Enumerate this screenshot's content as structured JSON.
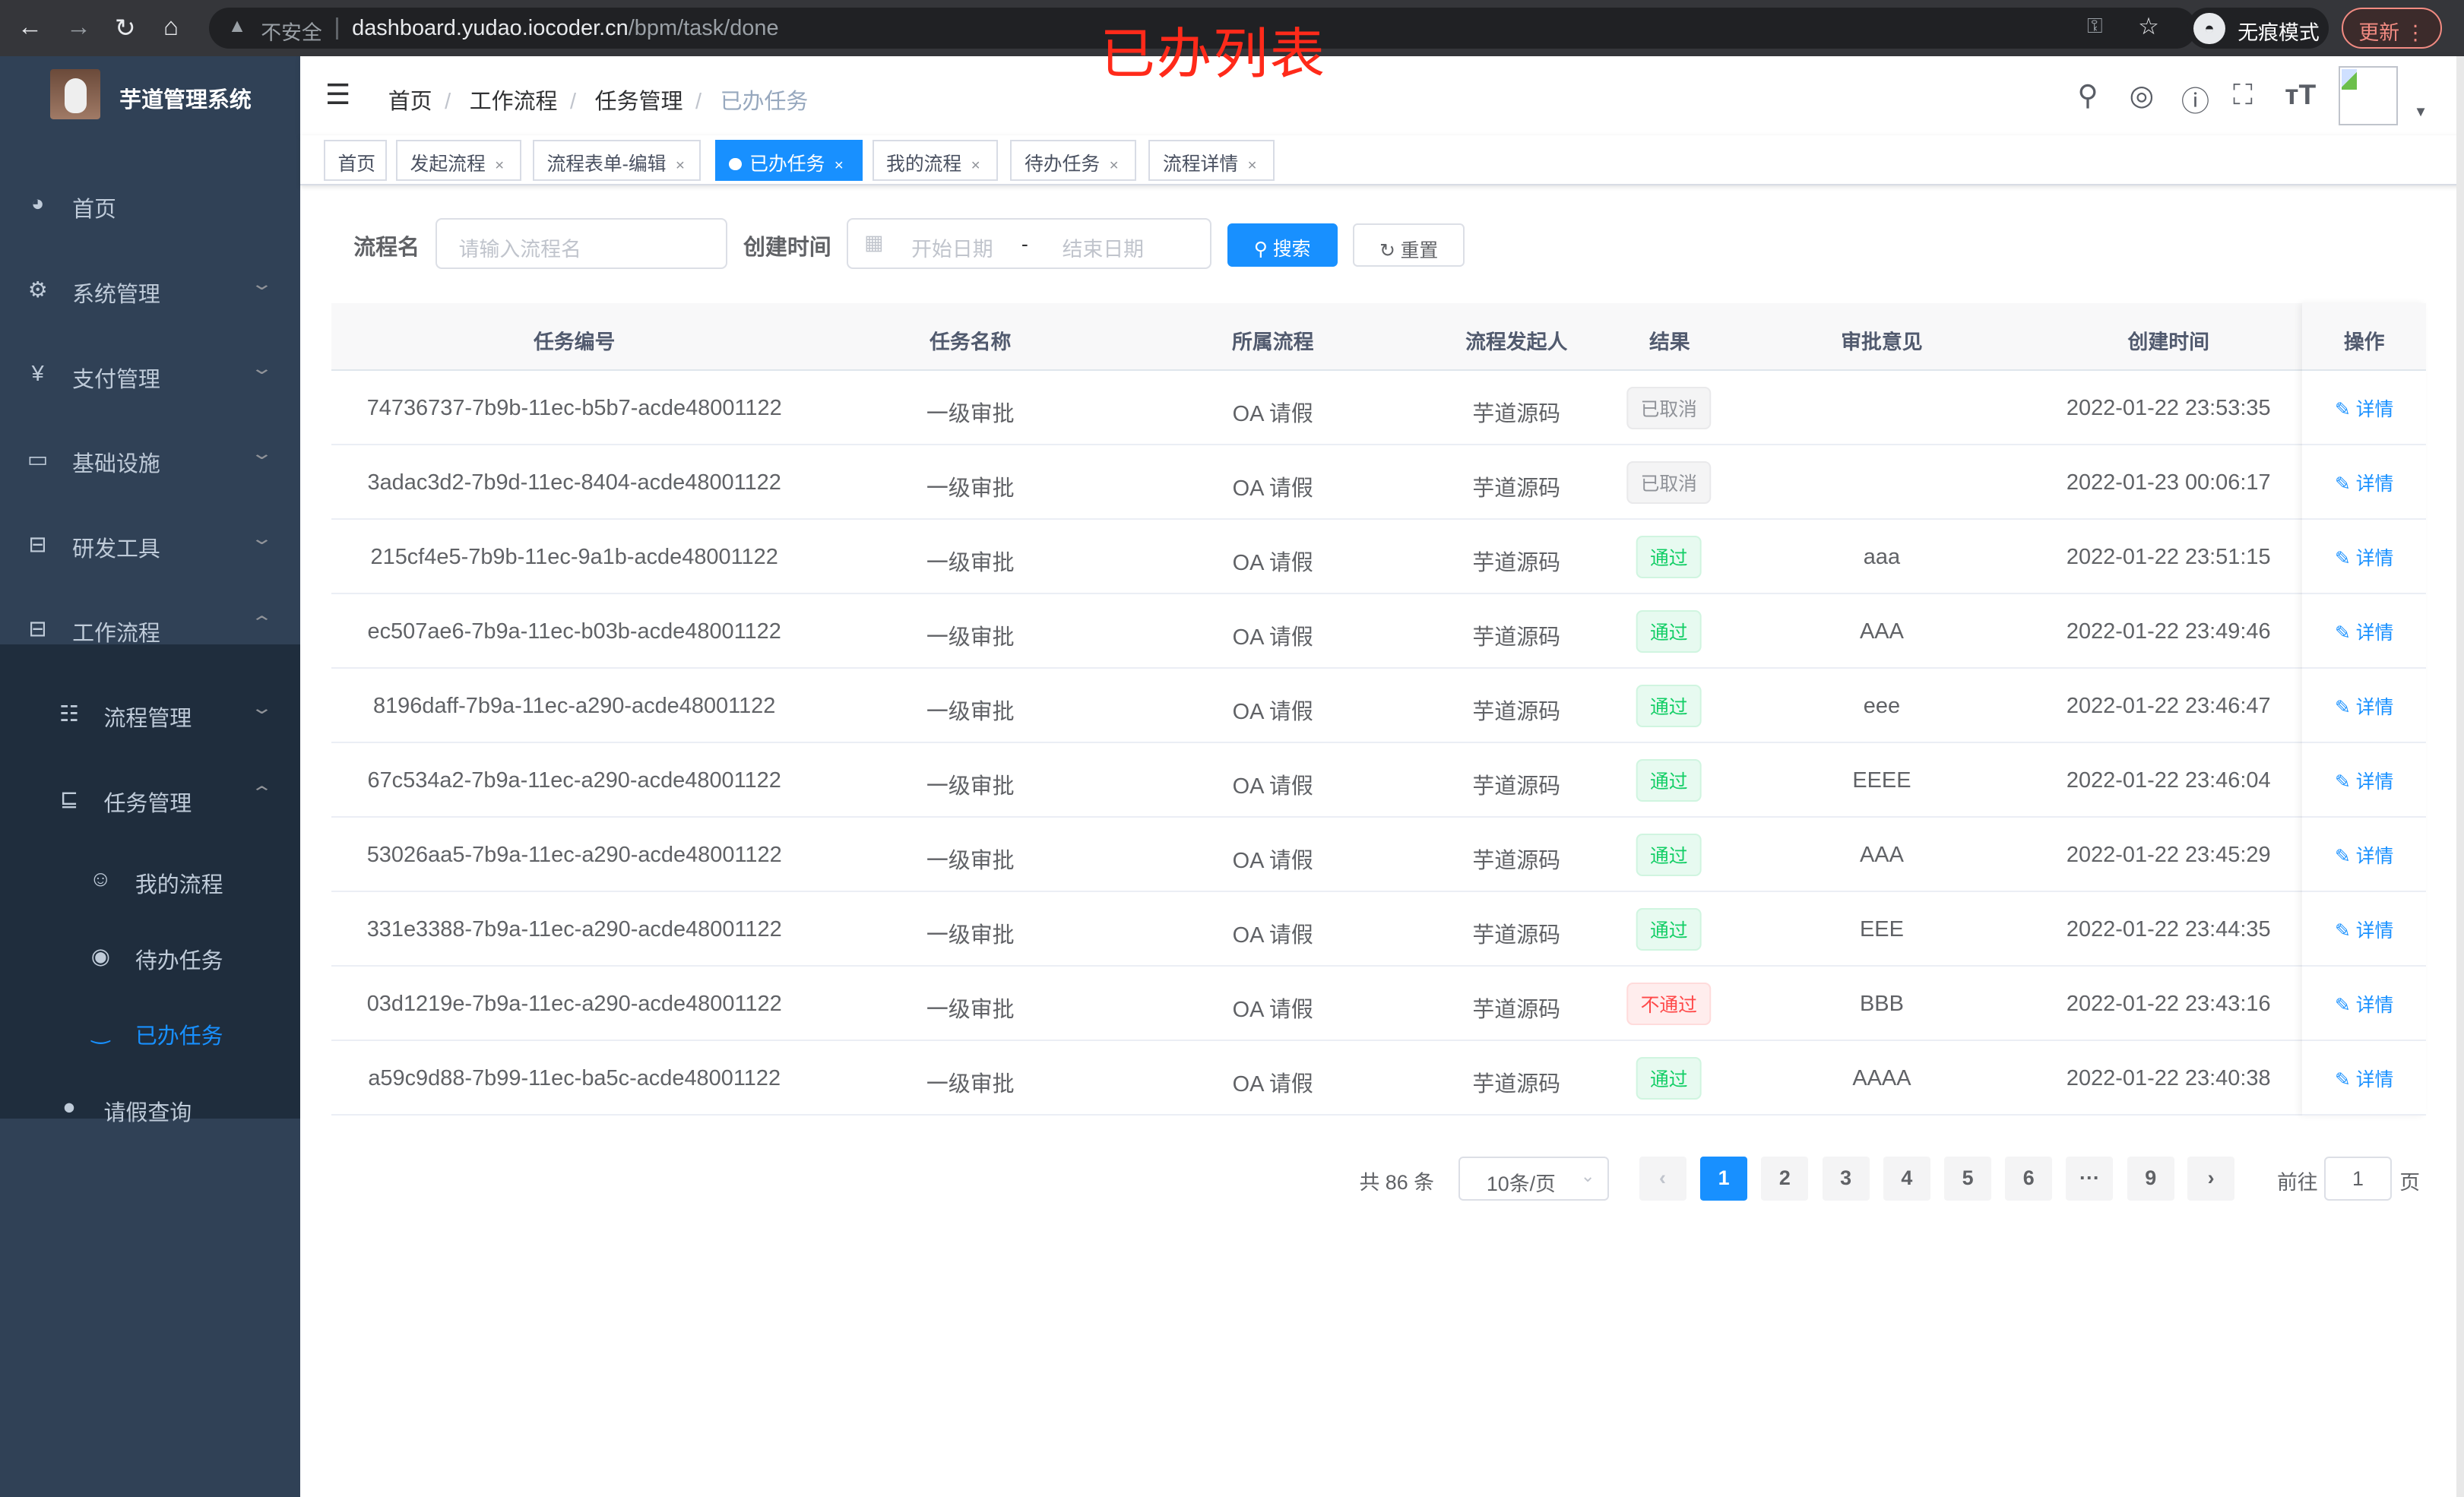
{
  "browser": {
    "url_host": "dashboard.yudao.iocoder.cn",
    "url_path": "/bpm/task/done",
    "insecure_label": "不安全",
    "incognito_label": "无痕模式",
    "update_label": "更新"
  },
  "annotation_title": "已办列表",
  "sidebar": {
    "brand": "芋道管理系统",
    "items": [
      {
        "label": "首页",
        "icon": "dashboard-icon"
      },
      {
        "label": "系统管理",
        "icon": "gear-icon"
      },
      {
        "label": "支付管理",
        "icon": "yen-icon"
      },
      {
        "label": "基础设施",
        "icon": "monitor-icon"
      },
      {
        "label": "研发工具",
        "icon": "toolbox-icon"
      },
      {
        "label": "工作流程",
        "icon": "toolbox-icon"
      },
      {
        "label": "流程管理",
        "icon": "list-icon"
      },
      {
        "label": "任务管理",
        "icon": "task-icon"
      },
      {
        "label": "我的流程",
        "icon": "robot-icon"
      },
      {
        "label": "待办任务",
        "icon": "eye-icon"
      },
      {
        "label": "已办任务",
        "icon": "eye-closed-icon",
        "active": true
      },
      {
        "label": "请假查询",
        "icon": "user-icon"
      }
    ]
  },
  "breadcrumb": [
    "首页",
    "工作流程",
    "任务管理",
    "已办任务"
  ],
  "tags": [
    {
      "label": "首页"
    },
    {
      "label": "发起流程"
    },
    {
      "label": "流程表单-编辑"
    },
    {
      "label": "已办任务",
      "active": true
    },
    {
      "label": "我的流程"
    },
    {
      "label": "待办任务"
    },
    {
      "label": "流程详情"
    }
  ],
  "filters": {
    "process_name_label": "流程名",
    "process_name_placeholder": "请输入流程名",
    "create_time_label": "创建时间",
    "start_placeholder": "开始日期",
    "range_sep": "-",
    "end_placeholder": "结束日期",
    "search_label": "搜索",
    "reset_label": "重置"
  },
  "table": {
    "columns": [
      "任务编号",
      "任务名称",
      "所属流程",
      "流程发起人",
      "结果",
      "审批意见",
      "创建时间",
      "操作"
    ],
    "rows": [
      {
        "id": "74736737-7b9b-11ec-b5b7-acde48001122",
        "name": "一级审批",
        "process": "OA 请假",
        "starter": "芋道源码",
        "result": "已取消",
        "status": "cancel",
        "comment": "",
        "time": "2022-01-22 23:53:35",
        "action": "详情"
      },
      {
        "id": "3adac3d2-7b9d-11ec-8404-acde48001122",
        "name": "一级审批",
        "process": "OA 请假",
        "starter": "芋道源码",
        "result": "已取消",
        "status": "cancel",
        "comment": "",
        "time": "2022-01-23 00:06:17",
        "action": "详情"
      },
      {
        "id": "215cf4e5-7b9b-11ec-9a1b-acde48001122",
        "name": "一级审批",
        "process": "OA 请假",
        "starter": "芋道源码",
        "result": "通过",
        "status": "pass",
        "comment": "aaa",
        "time": "2022-01-22 23:51:15",
        "action": "详情"
      },
      {
        "id": "ec507ae6-7b9a-11ec-b03b-acde48001122",
        "name": "一级审批",
        "process": "OA 请假",
        "starter": "芋道源码",
        "result": "通过",
        "status": "pass",
        "comment": "AAA",
        "time": "2022-01-22 23:49:46",
        "action": "详情"
      },
      {
        "id": "8196daff-7b9a-11ec-a290-acde48001122",
        "name": "一级审批",
        "process": "OA 请假",
        "starter": "芋道源码",
        "result": "通过",
        "status": "pass",
        "comment": "eee",
        "time": "2022-01-22 23:46:47",
        "action": "详情"
      },
      {
        "id": "67c534a2-7b9a-11ec-a290-acde48001122",
        "name": "一级审批",
        "process": "OA 请假",
        "starter": "芋道源码",
        "result": "通过",
        "status": "pass",
        "comment": "EEEE",
        "time": "2022-01-22 23:46:04",
        "action": "详情"
      },
      {
        "id": "53026aa5-7b9a-11ec-a290-acde48001122",
        "name": "一级审批",
        "process": "OA 请假",
        "starter": "芋道源码",
        "result": "通过",
        "status": "pass",
        "comment": "AAA",
        "time": "2022-01-22 23:45:29",
        "action": "详情"
      },
      {
        "id": "331e3388-7b9a-11ec-a290-acde48001122",
        "name": "一级审批",
        "process": "OA 请假",
        "starter": "芋道源码",
        "result": "通过",
        "status": "pass",
        "comment": "EEE",
        "time": "2022-01-22 23:44:35",
        "action": "详情"
      },
      {
        "id": "03d1219e-7b9a-11ec-a290-acde48001122",
        "name": "一级审批",
        "process": "OA 请假",
        "starter": "芋道源码",
        "result": "不通过",
        "status": "reject",
        "comment": "BBB",
        "time": "2022-01-22 23:43:16",
        "action": "详情"
      },
      {
        "id": "a59c9d88-7b99-11ec-ba5c-acde48001122",
        "name": "一级审批",
        "process": "OA 请假",
        "starter": "芋道源码",
        "result": "通过",
        "status": "pass",
        "comment": "AAAA",
        "time": "2022-01-22 23:40:38",
        "action": "详情"
      }
    ]
  },
  "pagination": {
    "total_label": "共 86 条",
    "page_size": "10条/页",
    "pages": [
      "1",
      "2",
      "3",
      "4",
      "5",
      "6",
      "···",
      "9"
    ],
    "current": "1",
    "goto_label": "前往",
    "goto_value": "1",
    "page_suffix": "页"
  },
  "colors": {
    "primary": "#1890ff",
    "sidebar": "#304156",
    "submenu": "#1f2d3d",
    "pass": "#13ce66",
    "reject": "#ff4949",
    "cancel": "#909399",
    "annotation": "#ff2a1a"
  }
}
